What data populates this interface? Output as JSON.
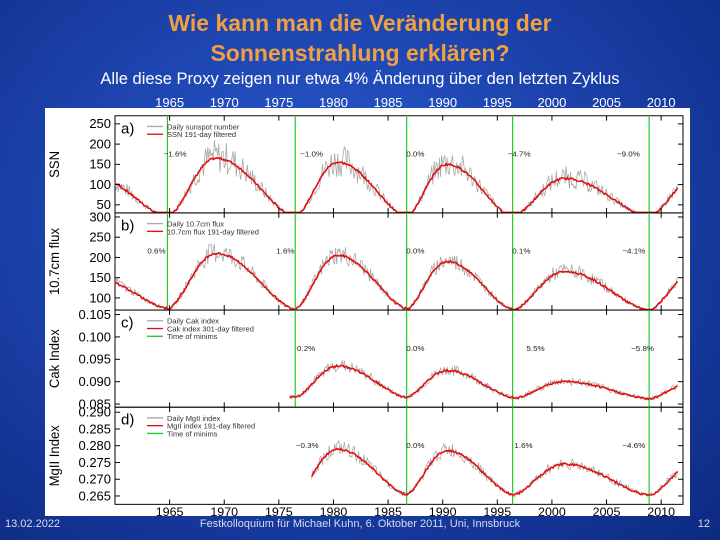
{
  "slide": {
    "title_line1": "Wie kann man die Veränderung der",
    "title_line2": "Sonnenstrahlung erklären?",
    "subtitle": "Alle diese Proxy zeigen nur etwa 4% Änderung über den letzten Zyklus",
    "footer_date": "13.02.2022",
    "footer_center": "Festkolloquium für Michael Kuhn, 6. Oktober 2011, Uni, Innsbruck",
    "footer_page": "12"
  },
  "colors": {
    "raw": "#a9a9a9",
    "smooth": "#e01010",
    "minima": "#22cc22",
    "accent": "#f0a040"
  },
  "chart_data": {
    "type": "line",
    "x_ticks": [
      "1965",
      "1970",
      "1975",
      "1980",
      "1985",
      "1990",
      "1995",
      "2000",
      "2005",
      "2010"
    ],
    "x_range": [
      1960,
      2012
    ],
    "minima_years": [
      1964.8,
      1976.5,
      1986.7,
      1996.4,
      2008.9
    ],
    "panels": [
      {
        "label": "a)",
        "ylabel": "SSN",
        "yticks": [
          "50",
          "100",
          "150",
          "200",
          "250"
        ],
        "ytick_values": [
          50,
          100,
          150,
          200,
          250
        ],
        "ylim": [
          30,
          270
        ],
        "legend": [
          "Daily sunspot number",
          "SSN 191-day filtered"
        ],
        "has_minima_legend": false,
        "start_year": 1960,
        "min_values": [
          20,
          20,
          20,
          20,
          20
        ],
        "max_values": [
          120,
          165,
          155,
          150,
          115
        ],
        "noise": 0.6,
        "annotations": [
          {
            "year": 1965.5,
            "text": "−1.6%"
          },
          {
            "year": 1978,
            "text": "−1.0%"
          },
          {
            "year": 1987.5,
            "text": "0.0%"
          },
          {
            "year": 1997,
            "text": "−4.7%"
          },
          {
            "year": 2007,
            "text": "−9.0%"
          }
        ]
      },
      {
        "label": "b)",
        "ylabel": "10.7cm flux",
        "yticks": [
          "100",
          "150",
          "200",
          "250",
          "300"
        ],
        "ytick_values": [
          100,
          150,
          200,
          250,
          300
        ],
        "ylim": [
          70,
          310
        ],
        "legend": [
          "Daily 10.7cm flux",
          "10.7cm flux 191-day filtered"
        ],
        "has_minima_legend": false,
        "start_year": 1960,
        "min_values": [
          75,
          72,
          74,
          72,
          69
        ],
        "max_values": [
          150,
          210,
          205,
          190,
          165
        ],
        "noise": 0.35,
        "annotations": [
          {
            "year": 1963.8,
            "text": "0.6%"
          },
          {
            "year": 1975.6,
            "text": "1.6%"
          },
          {
            "year": 1987.5,
            "text": "0.0%"
          },
          {
            "year": 1997.2,
            "text": "0.1%"
          },
          {
            "year": 2007.5,
            "text": "−4.1%"
          }
        ]
      },
      {
        "label": "c)",
        "ylabel": "Cak Index",
        "yticks": [
          "0.085",
          "0.090",
          "0.095",
          "0.100",
          "0.105"
        ],
        "ytick_values": [
          0.085,
          0.09,
          0.095,
          0.1,
          0.105
        ],
        "ylim": [
          0.0843,
          0.106
        ],
        "legend": [
          "Daily Cak index",
          "Cak index 301-day filtered",
          "Time of minims"
        ],
        "has_minima_legend": true,
        "start_year": 1976,
        "min_values": [
          0.0865,
          0.0865,
          0.0865,
          0.0865,
          0.0862
        ],
        "max_values": [
          0.0865,
          0.094,
          0.0935,
          0.0925,
          0.09
        ],
        "noise": 0.25,
        "annotations": [
          {
            "year": 1977.5,
            "text": "0.2%"
          },
          {
            "year": 1987.5,
            "text": "0.0%"
          },
          {
            "year": 1998.5,
            "text": "5.5%"
          },
          {
            "year": 2008.3,
            "text": "−5.8%"
          }
        ]
      },
      {
        "label": "d)",
        "ylabel": "MgII Index",
        "yticks": [
          "0.265",
          "0.270",
          "0.275",
          "0.280",
          "0.285",
          "0.290"
        ],
        "ytick_values": [
          0.265,
          0.27,
          0.275,
          0.28,
          0.285,
          0.29
        ],
        "ylim": [
          0.2625,
          0.2915
        ],
        "legend": [
          "Daily MgII index",
          "MgII index 191-day filtered",
          "Time of minims"
        ],
        "has_minima_legend": true,
        "start_year": 1978,
        "min_values": [
          0.2655,
          0.2655,
          0.2655,
          0.2655,
          0.2652
        ],
        "max_values": [
          0.2655,
          0.2795,
          0.279,
          0.2785,
          0.2745
        ],
        "noise": 0.25,
        "annotations": [
          {
            "year": 1977.6,
            "text": "−0.3%"
          },
          {
            "year": 1987.5,
            "text": "0.0%"
          },
          {
            "year": 1997.4,
            "text": "1.6%"
          },
          {
            "year": 2007.5,
            "text": "−4.6%"
          }
        ]
      }
    ]
  }
}
